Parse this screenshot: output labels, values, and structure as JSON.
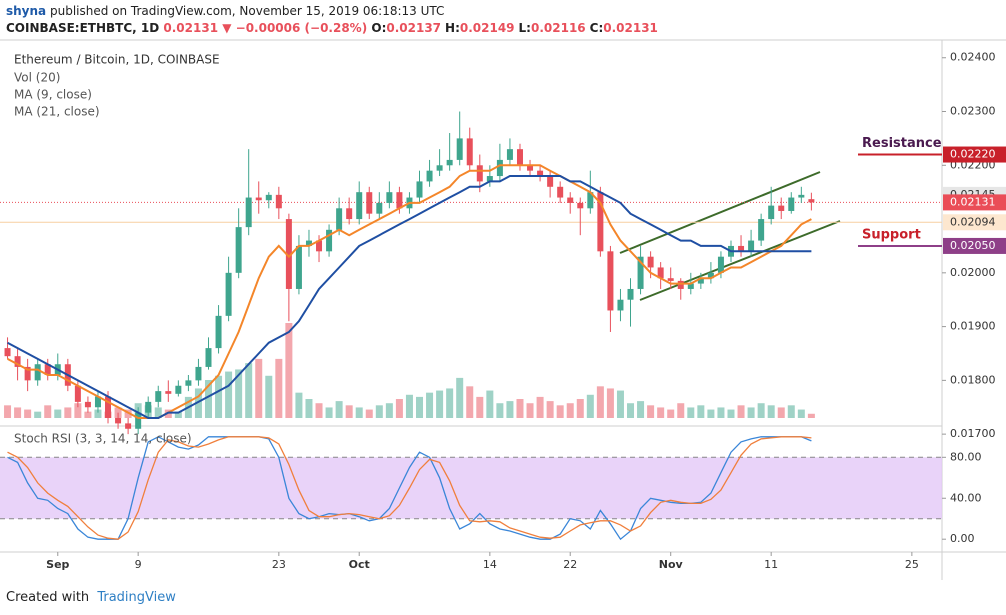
{
  "header": {
    "author": "shyna",
    "published": "published on TradingView.com, November 15, 2019 06:18:13 UTC",
    "symbol": "COINBASE:ETHBTC, 1D",
    "last": "0.02131",
    "change": "▼ −0.00006 (−0.28%)",
    "ohlc": [
      {
        "label": "O:",
        "value": "0.02137"
      },
      {
        "label": "H:",
        "value": "0.02149"
      },
      {
        "label": "L:",
        "value": "0.02116"
      },
      {
        "label": "C:",
        "value": "0.02131"
      }
    ]
  },
  "footer": {
    "text": "Created with",
    "brand": "TradingView"
  },
  "chart_data": {
    "type": "candlestick",
    "title": "Ethereum / Bitcoin, 1D, COINBASE",
    "up_color": "#3fa58e",
    "down_color": "#e8505b",
    "open": [
      0.0186,
      0.01845,
      0.01825,
      0.018,
      0.0183,
      0.0181,
      0.0183,
      0.0179,
      0.0176,
      0.0175,
      0.0177,
      0.0173,
      0.0172,
      0.0171,
      0.0174,
      0.0176,
      0.0178,
      0.01775,
      0.0179,
      0.018,
      0.01825,
      0.0186,
      0.0192,
      0.02,
      0.02085,
      0.0214,
      0.02135,
      0.02145,
      0.021,
      0.0197,
      0.0205,
      0.0206,
      0.0204,
      0.0208,
      0.0212,
      0.021,
      0.0215,
      0.0211,
      0.0213,
      0.0215,
      0.0212,
      0.0214,
      0.0217,
      0.0219,
      0.022,
      0.0221,
      0.0225,
      0.022,
      0.0217,
      0.0218,
      0.0221,
      0.0223,
      0.022,
      0.0219,
      0.0218,
      0.0216,
      0.0214,
      0.0213,
      0.0212,
      0.0215,
      0.0204,
      0.0193,
      0.0195,
      0.0197,
      0.0203,
      0.0201,
      0.0199,
      0.01985,
      0.0197,
      0.0198,
      0.0199,
      0.02,
      0.0203,
      0.0205,
      0.0204,
      0.0206,
      0.021,
      0.02125,
      0.02115,
      0.0214,
      0.02137
    ],
    "high": [
      0.0188,
      0.0186,
      0.0184,
      0.0184,
      0.0184,
      0.0185,
      0.0184,
      0.018,
      0.0177,
      0.0178,
      0.0178,
      0.0174,
      0.0173,
      0.0175,
      0.0177,
      0.0179,
      0.018,
      0.018,
      0.0181,
      0.0184,
      0.0188,
      0.0194,
      0.0203,
      0.0212,
      0.0223,
      0.0217,
      0.0215,
      0.0216,
      0.0211,
      0.0207,
      0.0208,
      0.0207,
      0.0209,
      0.0214,
      0.0214,
      0.0217,
      0.0216,
      0.0215,
      0.0217,
      0.0216,
      0.0215,
      0.0219,
      0.0221,
      0.0223,
      0.0226,
      0.023,
      0.0227,
      0.0222,
      0.022,
      0.0224,
      0.0225,
      0.0224,
      0.0221,
      0.022,
      0.0219,
      0.0217,
      0.0215,
      0.0214,
      0.0219,
      0.0216,
      0.0205,
      0.0197,
      0.0199,
      0.0205,
      0.0204,
      0.0202,
      0.0201,
      0.0199,
      0.02,
      0.02,
      0.0202,
      0.0204,
      0.0206,
      0.0207,
      0.0208,
      0.0211,
      0.0216,
      0.0214,
      0.0215,
      0.0216,
      0.02149
    ],
    "low": [
      0.0184,
      0.018,
      0.0178,
      0.0179,
      0.018,
      0.018,
      0.0178,
      0.0175,
      0.0174,
      0.0174,
      0.0172,
      0.0171,
      0.017,
      0.017,
      0.0173,
      0.0175,
      0.0176,
      0.0177,
      0.0178,
      0.0179,
      0.0182,
      0.0185,
      0.0191,
      0.0199,
      0.0207,
      0.0211,
      0.0212,
      0.021,
      0.0191,
      0.0196,
      0.0203,
      0.0202,
      0.0203,
      0.0207,
      0.0209,
      0.0209,
      0.021,
      0.021,
      0.0212,
      0.0211,
      0.0211,
      0.0213,
      0.0216,
      0.0218,
      0.0219,
      0.022,
      0.0219,
      0.0215,
      0.0216,
      0.0217,
      0.022,
      0.0219,
      0.0218,
      0.0217,
      0.0214,
      0.0213,
      0.0211,
      0.0207,
      0.0211,
      0.0203,
      0.0189,
      0.0191,
      0.019,
      0.0196,
      0.0199,
      0.0197,
      0.0197,
      0.0195,
      0.0196,
      0.0197,
      0.0198,
      0.0199,
      0.0202,
      0.0203,
      0.0203,
      0.0205,
      0.0209,
      0.021,
      0.0211,
      0.0213,
      0.02116
    ],
    "close": [
      0.01845,
      0.01825,
      0.018,
      0.0183,
      0.0181,
      0.0183,
      0.0179,
      0.0176,
      0.0175,
      0.0177,
      0.0173,
      0.0172,
      0.0171,
      0.0174,
      0.0176,
      0.0178,
      0.01775,
      0.0179,
      0.018,
      0.01825,
      0.0186,
      0.0192,
      0.02,
      0.02085,
      0.0214,
      0.02135,
      0.02145,
      0.0212,
      0.0197,
      0.0205,
      0.0206,
      0.0204,
      0.0208,
      0.0212,
      0.021,
      0.0215,
      0.0211,
      0.0213,
      0.0215,
      0.0212,
      0.0214,
      0.0217,
      0.0219,
      0.022,
      0.0221,
      0.0225,
      0.022,
      0.0217,
      0.0218,
      0.0221,
      0.0223,
      0.022,
      0.0219,
      0.0218,
      0.0216,
      0.0214,
      0.0213,
      0.0212,
      0.0215,
      0.0204,
      0.0193,
      0.0195,
      0.0197,
      0.0203,
      0.0201,
      0.0199,
      0.01985,
      0.0197,
      0.0198,
      0.0199,
      0.02,
      0.0203,
      0.0205,
      0.0204,
      0.0206,
      0.021,
      0.02125,
      0.02115,
      0.0214,
      0.02145,
      0.02131
    ],
    "volume": {
      "name": "Vol (20)",
      "values": [
        12,
        10,
        8,
        6,
        12,
        8,
        10,
        14,
        6,
        8,
        6,
        10,
        8,
        14,
        12,
        10,
        8,
        6,
        20,
        28,
        36,
        40,
        44,
        46,
        52,
        56,
        40,
        56,
        90,
        24,
        18,
        14,
        10,
        16,
        12,
        10,
        8,
        12,
        14,
        18,
        22,
        20,
        24,
        26,
        28,
        38,
        30,
        20,
        26,
        14,
        16,
        18,
        14,
        20,
        16,
        12,
        14,
        18,
        22,
        30,
        28,
        26,
        14,
        16,
        12,
        10,
        8,
        14,
        10,
        12,
        8,
        10,
        8,
        12,
        10,
        14,
        12,
        10,
        12,
        8,
        4
      ]
    },
    "series": [
      {
        "name": "MA (9, close)",
        "color": "#f4862a",
        "values": [
          0.0184,
          0.0183,
          0.0182,
          0.0182,
          0.0181,
          0.0181,
          0.018,
          0.0179,
          0.0178,
          0.0177,
          0.0176,
          0.0175,
          0.0174,
          0.0173,
          0.0173,
          0.0173,
          0.0174,
          0.0175,
          0.0176,
          0.0177,
          0.0179,
          0.0181,
          0.0185,
          0.0189,
          0.0194,
          0.0199,
          0.0203,
          0.0205,
          0.0203,
          0.0205,
          0.0205,
          0.0206,
          0.0207,
          0.0208,
          0.0207,
          0.0208,
          0.0209,
          0.021,
          0.0211,
          0.0212,
          0.0213,
          0.0213,
          0.0214,
          0.0215,
          0.0216,
          0.0218,
          0.0219,
          0.0219,
          0.0219,
          0.022,
          0.022,
          0.022,
          0.022,
          0.022,
          0.0219,
          0.0218,
          0.0217,
          0.0216,
          0.0215,
          0.0213,
          0.0209,
          0.0206,
          0.0204,
          0.0202,
          0.02,
          0.0199,
          0.0198,
          0.0198,
          0.0198,
          0.0199,
          0.0199,
          0.02,
          0.0201,
          0.0201,
          0.0202,
          0.0203,
          0.0204,
          0.0205,
          0.0207,
          0.0209,
          0.021
        ]
      },
      {
        "name": "MA (21, close)",
        "color": "#1f4fa3",
        "values": [
          0.0187,
          0.0186,
          0.0185,
          0.0184,
          0.0183,
          0.0182,
          0.0181,
          0.018,
          0.0179,
          0.0178,
          0.0177,
          0.0176,
          0.0175,
          0.0174,
          0.0173,
          0.0173,
          0.0174,
          0.0174,
          0.0175,
          0.0176,
          0.0177,
          0.0178,
          0.0179,
          0.0181,
          0.0183,
          0.0185,
          0.0187,
          0.0188,
          0.0189,
          0.0191,
          0.0194,
          0.0197,
          0.0199,
          0.0201,
          0.0203,
          0.0205,
          0.0206,
          0.0207,
          0.0208,
          0.0209,
          0.021,
          0.0211,
          0.0212,
          0.0213,
          0.0214,
          0.0215,
          0.0216,
          0.0216,
          0.0217,
          0.0217,
          0.0218,
          0.0218,
          0.0218,
          0.0218,
          0.0218,
          0.0218,
          0.0217,
          0.0217,
          0.0216,
          0.0215,
          0.0214,
          0.0213,
          0.0211,
          0.021,
          0.0209,
          0.0208,
          0.0207,
          0.0206,
          0.0206,
          0.0205,
          0.0205,
          0.0205,
          0.0204,
          0.0204,
          0.0204,
          0.0204,
          0.0204,
          0.0204,
          0.0204,
          0.0204,
          0.0204
        ]
      }
    ],
    "xlim": [
      -0.75,
      93
    ],
    "xticks": [
      {
        "value": 5,
        "label": "Sep"
      },
      {
        "value": 13,
        "label": "9"
      },
      {
        "value": 27,
        "label": "23"
      },
      {
        "value": 35,
        "label": "Oct"
      },
      {
        "value": 48,
        "label": "14"
      },
      {
        "value": 56,
        "label": "22"
      },
      {
        "value": 66,
        "label": "Nov"
      },
      {
        "value": 76,
        "label": "11"
      },
      {
        "value": 90,
        "label": "25"
      }
    ],
    "ylim": [
      0.01717,
      0.02433
    ],
    "yticks": [
      {
        "value": 0.024,
        "label": "0.02400"
      },
      {
        "value": 0.023,
        "label": "0.02300"
      },
      {
        "value": 0.022,
        "label": "0.02200"
      },
      {
        "value": 0.02,
        "label": "0.02000"
      },
      {
        "value": 0.019,
        "label": "0.01900"
      },
      {
        "value": 0.018,
        "label": "0.01800"
      },
      {
        "value": 0.017,
        "label": "0.01700"
      }
    ],
    "price_labels": [
      {
        "value": 0.0222,
        "label": "0.02220",
        "color": "#c8202a",
        "text_color": "#ffffff",
        "line": false
      },
      {
        "value": 0.02145,
        "label": "0.02145",
        "color": "#e6e6e6",
        "text_color": "#333333",
        "line": false
      },
      {
        "value": 0.02131,
        "label": "0.02131",
        "color": "#ea4d57",
        "text_color": "#ffffff",
        "line": true
      },
      {
        "value": 0.02094,
        "label": "0.02094",
        "color": "#fde7cf",
        "text_color": "#333333",
        "line": true
      },
      {
        "value": 0.0205,
        "label": "0.02050",
        "color": "#8e3f88",
        "text_color": "#ffffff",
        "line": false
      }
    ],
    "annotations": [
      {
        "text": "Resistance",
        "value": 0.0222,
        "color": "#4a1a4f",
        "line_color": "#c8202a"
      },
      {
        "text": "Support",
        "value": 0.0205,
        "color": "#c8202a",
        "line_color": "#8e3f88"
      }
    ],
    "indicator": {
      "name": "Stoch RSI (3, 3, 14, 14, close)",
      "ylim": [
        -12.5,
        109.6
      ],
      "yticks": [
        {
          "value": 80,
          "label": "80.00"
        },
        {
          "value": 40,
          "label": "40.00"
        },
        {
          "value": 0,
          "label": "0.00"
        }
      ],
      "band": [
        20,
        80
      ],
      "band_color": "#e3c8f8",
      "series": [
        {
          "name": "K",
          "color": "#3a86d8",
          "values": [
            80,
            75,
            55,
            40,
            38,
            30,
            25,
            10,
            2,
            0,
            0,
            0,
            20,
            60,
            95,
            100,
            95,
            90,
            88,
            92,
            100,
            100,
            100,
            100,
            100,
            100,
            98,
            80,
            40,
            25,
            20,
            22,
            25,
            24,
            25,
            22,
            18,
            20,
            30,
            50,
            70,
            85,
            80,
            60,
            30,
            10,
            15,
            25,
            15,
            10,
            8,
            5,
            2,
            0,
            0,
            5,
            20,
            18,
            10,
            28,
            15,
            0,
            8,
            30,
            40,
            38,
            36,
            35,
            35,
            36,
            45,
            65,
            85,
            95,
            98,
            100,
            100,
            100,
            100,
            100,
            96
          ]
        },
        {
          "name": "D",
          "color": "#f07f3c",
          "values": [
            85,
            80,
            70,
            55,
            45,
            38,
            32,
            22,
            12,
            4,
            1,
            0,
            7,
            27,
            58,
            85,
            97,
            95,
            91,
            90,
            93,
            97,
            100,
            100,
            100,
            100,
            99,
            93,
            73,
            48,
            28,
            22,
            22,
            24,
            25,
            24,
            22,
            20,
            23,
            33,
            50,
            68,
            78,
            75,
            57,
            33,
            18,
            17,
            18,
            17,
            11,
            8,
            5,
            2,
            1,
            2,
            8,
            14,
            16,
            18,
            18,
            14,
            8,
            13,
            26,
            36,
            38,
            36,
            35,
            35,
            39,
            48,
            65,
            82,
            93,
            98,
            99,
            100,
            100,
            100,
            99
          ]
        }
      ]
    }
  }
}
